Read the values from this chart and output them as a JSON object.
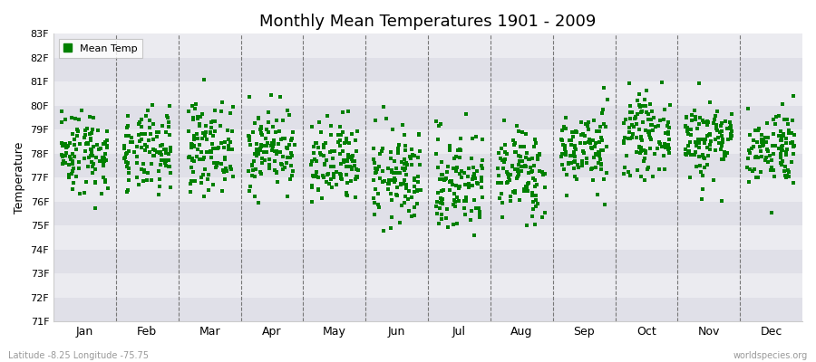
{
  "title": "Monthly Mean Temperatures 1901 - 2009",
  "ylabel": "Temperature",
  "xlabel_bottom_left": "Latitude -8.25 Longitude -75.75",
  "xlabel_bottom_right": "worldspecies.org",
  "legend_label": "Mean Temp",
  "months": [
    "Jan",
    "Feb",
    "Mar",
    "Apr",
    "May",
    "Jun",
    "Jul",
    "Aug",
    "Sep",
    "Oct",
    "Nov",
    "Dec"
  ],
  "ylim": [
    71,
    83
  ],
  "yticks": [
    71,
    72,
    73,
    74,
    75,
    76,
    77,
    78,
    79,
    80,
    81,
    82,
    83
  ],
  "ytick_labels": [
    "71F",
    "72F",
    "73F",
    "74F",
    "75F",
    "76F",
    "77F",
    "78F",
    "79F",
    "80F",
    "81F",
    "82F",
    "83F"
  ],
  "marker_color": "#008000",
  "marker_size": 2.5,
  "background_color": "#ffffff",
  "band_colors": [
    "#e0e0e8",
    "#ebebf0"
  ],
  "mean_temps": {
    "Jan": 78.1,
    "Feb": 78.0,
    "Mar": 78.3,
    "Apr": 78.2,
    "May": 77.5,
    "Jun": 77.0,
    "Jul": 76.8,
    "Aug": 77.2,
    "Sep": 78.2,
    "Oct": 78.8,
    "Nov": 78.6,
    "Dec": 78.3
  },
  "std_temps": {
    "Jan": 0.9,
    "Feb": 0.85,
    "Mar": 0.9,
    "Apr": 0.85,
    "May": 0.9,
    "Jun": 1.0,
    "Jul": 1.1,
    "Aug": 0.95,
    "Sep": 0.8,
    "Oct": 0.8,
    "Nov": 0.85,
    "Dec": 0.8
  },
  "seed": 42,
  "n_years": 109,
  "figsize": [
    9.0,
    4.0
  ],
  "dpi": 100
}
